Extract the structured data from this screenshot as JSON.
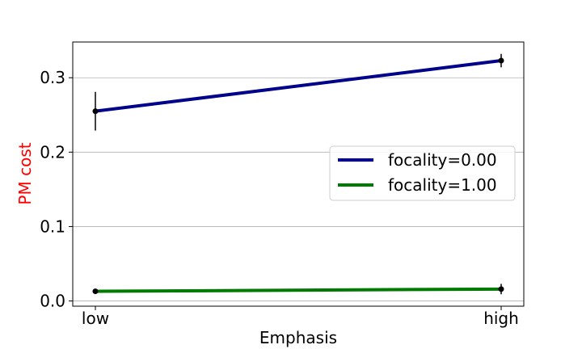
{
  "chart_data": {
    "type": "line",
    "title": "",
    "xlabel": "Emphasis",
    "ylabel": "PM cost",
    "ylabel_color": "#ff0000",
    "categories": [
      "low",
      "high"
    ],
    "ylim": [
      -0.007,
      0.348
    ],
    "yticks": [
      0.0,
      0.1,
      0.2,
      0.3
    ],
    "ytick_labels": [
      "0.0",
      "0.1",
      "0.2",
      "0.3"
    ],
    "grid": "horizontal",
    "legend_position": "center-right",
    "series": [
      {
        "name": "focality=0.00",
        "color": "#00008b",
        "values": [
          0.255,
          0.323
        ],
        "errors": [
          0.026,
          0.009
        ]
      },
      {
        "name": "focality=1.00",
        "color": "#007a00",
        "values": [
          0.013,
          0.016
        ],
        "errors": [
          0.002,
          0.007
        ]
      }
    ]
  }
}
